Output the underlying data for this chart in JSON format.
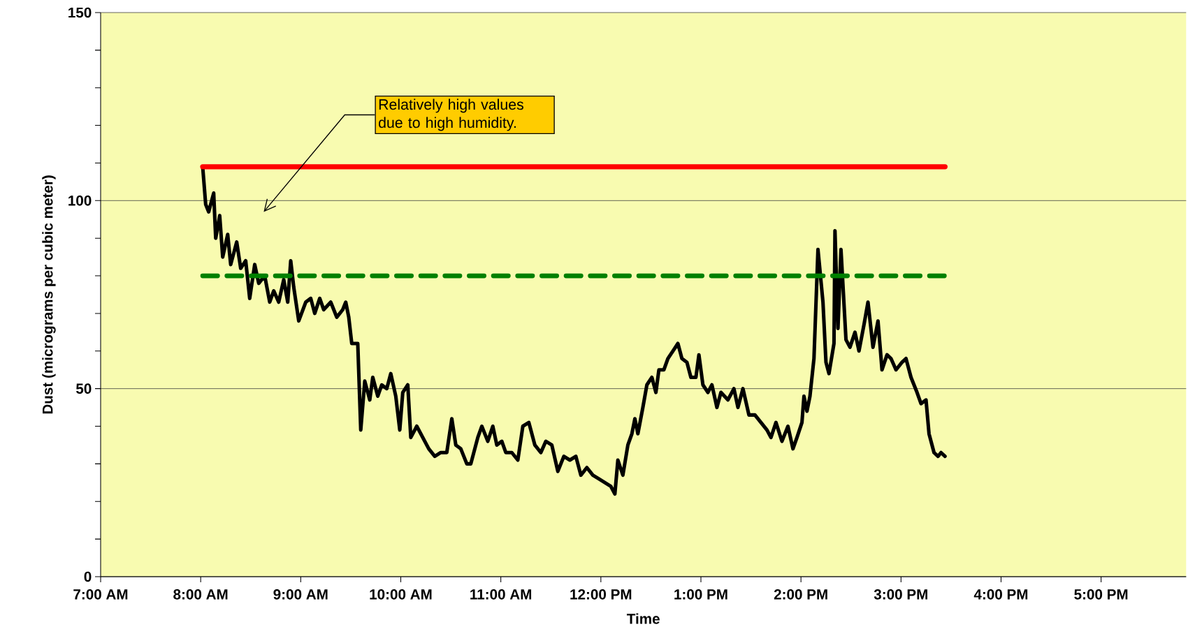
{
  "chart_data": {
    "type": "line",
    "xlabel": "Time",
    "ylabel": "Dust (micrograms per cubic meter)",
    "xlim": [
      7,
      17.85
    ],
    "ylim": [
      0,
      150
    ],
    "xticks": [
      {
        "value": 7,
        "label": "7:00 AM"
      },
      {
        "value": 8,
        "label": "8:00 AM"
      },
      {
        "value": 9,
        "label": "9:00 AM"
      },
      {
        "value": 10,
        "label": "10:00 AM"
      },
      {
        "value": 11,
        "label": "11:00 AM"
      },
      {
        "value": 12,
        "label": "12:00 PM"
      },
      {
        "value": 13,
        "label": "1:00 PM"
      },
      {
        "value": 14,
        "label": "2:00 PM"
      },
      {
        "value": 15,
        "label": "3:00 PM"
      },
      {
        "value": 16,
        "label": "4:00 PM"
      },
      {
        "value": 17,
        "label": "5:00 PM"
      }
    ],
    "yticks": [
      0,
      50,
      100,
      150
    ],
    "grid": "y",
    "legend": false,
    "marker": "none",
    "annotations": [
      "Relatively high values due to high humidity."
    ],
    "series": [
      {
        "color": "#000000",
        "line_style": "solid",
        "x": [
          8.02,
          8.05,
          8.08,
          8.13,
          8.15,
          8.19,
          8.22,
          8.27,
          8.3,
          8.36,
          8.4,
          8.45,
          8.49,
          8.54,
          8.58,
          8.64,
          8.69,
          8.73,
          8.78,
          8.83,
          8.87,
          8.9,
          8.93,
          8.98,
          9.05,
          9.1,
          9.14,
          9.19,
          9.23,
          9.3,
          9.36,
          9.42,
          9.45,
          9.48,
          9.51,
          9.57,
          9.6,
          9.64,
          9.69,
          9.72,
          9.77,
          9.81,
          9.86,
          9.9,
          9.95,
          9.99,
          10.02,
          10.07,
          10.1,
          10.16,
          10.22,
          10.28,
          10.34,
          10.4,
          10.46,
          10.51,
          10.55,
          10.6,
          10.66,
          10.7,
          10.77,
          10.81,
          10.87,
          10.92,
          10.96,
          11.01,
          11.05,
          11.11,
          11.17,
          11.22,
          11.28,
          11.34,
          11.4,
          11.45,
          11.51,
          11.57,
          11.63,
          11.69,
          11.75,
          11.8,
          11.86,
          11.92,
          11.98,
          12.04,
          12.1,
          12.14,
          12.17,
          12.22,
          12.27,
          12.31,
          12.34,
          12.37,
          12.42,
          12.46,
          12.51,
          12.55,
          12.58,
          12.63,
          12.67,
          12.72,
          12.77,
          12.81,
          12.86,
          12.9,
          12.95,
          12.98,
          13.02,
          13.07,
          13.11,
          13.16,
          13.2,
          13.27,
          13.33,
          13.37,
          13.42,
          13.48,
          13.54,
          13.6,
          13.66,
          13.7,
          13.75,
          13.81,
          13.87,
          13.92,
          13.96,
          14.01,
          14.03,
          14.06,
          14.09,
          14.13,
          14.17,
          14.22,
          14.25,
          14.28,
          14.33,
          14.34,
          14.37,
          14.4,
          14.45,
          14.49,
          14.54,
          14.58,
          14.63,
          14.67,
          14.72,
          14.77,
          14.81,
          14.86,
          14.9,
          14.95,
          15.01,
          15.05,
          15.1,
          15.16,
          15.2,
          15.25,
          15.28,
          15.33,
          15.37,
          15.4,
          15.44
        ],
        "values": [
          109,
          99,
          97,
          102,
          90,
          96,
          85,
          91,
          83,
          89,
          82,
          84,
          74,
          83,
          78,
          80,
          73,
          76,
          73,
          79,
          73,
          84,
          77,
          68,
          73,
          74,
          70,
          74,
          71,
          73,
          69,
          71,
          73,
          69,
          62,
          62,
          39,
          52,
          47,
          53,
          48,
          51,
          50,
          54,
          48,
          39,
          49,
          51,
          37,
          40,
          37,
          34,
          32,
          33,
          33,
          42,
          35,
          34,
          30,
          30,
          37,
          40,
          36,
          40,
          35,
          36,
          33,
          33,
          31,
          40,
          41,
          35,
          33,
          36,
          35,
          28,
          32,
          31,
          32,
          27,
          29,
          27,
          26,
          25,
          24,
          22,
          31,
          27,
          35,
          38,
          42,
          38,
          45,
          51,
          53,
          49,
          55,
          55,
          58,
          60,
          62,
          58,
          57,
          53,
          53,
          59,
          51,
          49,
          51,
          45,
          49,
          47,
          50,
          45,
          50,
          43,
          43,
          41,
          39,
          37,
          41,
          36,
          40,
          34,
          37,
          41,
          48,
          44,
          48,
          58,
          87,
          73,
          57,
          54,
          62,
          92,
          66,
          87,
          63,
          61,
          65,
          60,
          67,
          73,
          61,
          68,
          55,
          59,
          58,
          55,
          57,
          58,
          53,
          49,
          46,
          47,
          38,
          33,
          32,
          33,
          32
        ]
      },
      {
        "color": "#ff0000",
        "line_style": "solid",
        "x": [
          8.02,
          15.44
        ],
        "values": [
          109,
          109
        ]
      },
      {
        "color": "#008000",
        "line_style": "dashed",
        "x": [
          8.02,
          15.44
        ],
        "values": [
          80,
          80
        ]
      }
    ]
  }
}
